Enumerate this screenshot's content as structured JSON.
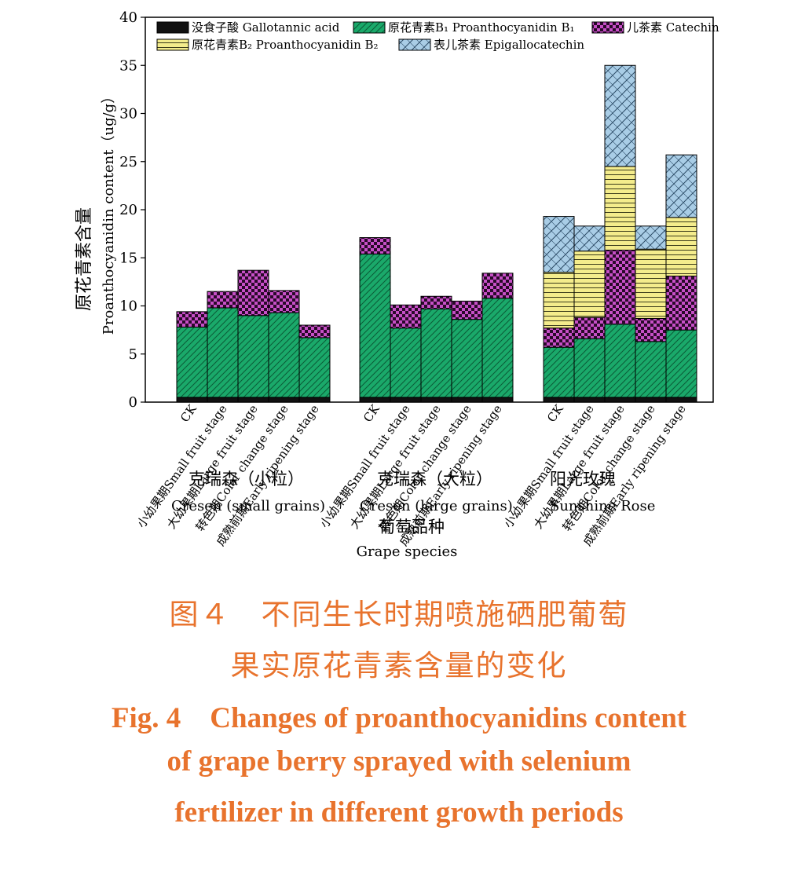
{
  "chart_data": {
    "type": "bar",
    "stacked": true,
    "ylabel_zh": "原花青素含量",
    "ylabel_en": "Proanthocyanidin content（ug/g）",
    "xlabel_zh": "葡萄品种",
    "xlabel_en": "Grape species",
    "ylim": [
      0,
      40
    ],
    "yticks": [
      0,
      5,
      10,
      15,
      20,
      25,
      30,
      35,
      40
    ],
    "legend_position": "top-left",
    "groups": [
      {
        "name_zh": "克瑞森（小粒）",
        "name_en": "Cresen (small grains)"
      },
      {
        "name_zh": "克瑞森（大粒）",
        "name_en": "Cresen (large grains)"
      },
      {
        "name_zh": "阳光玫瑰",
        "name_en": "Sunshine Rose"
      }
    ],
    "categories": [
      "CK",
      "小幼果期Small fruit stage",
      "大幼果期Large fruit stage",
      "转色期Color change stage",
      "成熟前期Early ripening stage"
    ],
    "series": [
      {
        "name": "没食子酸 Gallotannic acid",
        "color": "#111111",
        "pattern": "solid",
        "values": [
          [
            0.5,
            0.5,
            0.5,
            0.5,
            0.5
          ],
          [
            0.5,
            0.5,
            0.5,
            0.5,
            0.5
          ],
          [
            0.5,
            0.5,
            0.5,
            0.5,
            0.5
          ]
        ]
      },
      {
        "name": "原花青素B₁ Proanthocyanidin B₁",
        "color": "#1aa96a",
        "pattern": "diag",
        "values": [
          [
            7.3,
            9.3,
            8.5,
            8.8,
            6.2
          ],
          [
            14.9,
            7.2,
            9.2,
            8.1,
            10.3
          ],
          [
            5.2,
            6.1,
            7.6,
            5.8,
            7.0
          ]
        ]
      },
      {
        "name": "儿茶素 Catechin",
        "color": "#c64fc6",
        "pattern": "check",
        "values": [
          [
            1.6,
            1.7,
            4.7,
            2.3,
            1.3
          ],
          [
            1.7,
            2.4,
            1.3,
            1.9,
            2.6
          ],
          [
            2.0,
            2.2,
            7.7,
            2.4,
            5.6
          ]
        ]
      },
      {
        "name": "原花青素B₂ Proanthocyanidin B₂",
        "color": "#f4ec8c",
        "pattern": "hlines",
        "values": [
          [
            0,
            0,
            0,
            0,
            0
          ],
          [
            0,
            0,
            0,
            0,
            0
          ],
          [
            5.8,
            6.9,
            8.7,
            7.2,
            6.1
          ]
        ]
      },
      {
        "name": "表儿茶素 Epigallocatechin",
        "color": "#a9cde6",
        "pattern": "cross",
        "values": [
          [
            0,
            0,
            0,
            0,
            0
          ],
          [
            0,
            0,
            0,
            0,
            0
          ],
          [
            5.8,
            2.6,
            10.5,
            2.4,
            6.5
          ]
        ]
      }
    ]
  },
  "caption": {
    "zh_line1": "图４　不同生长时期喷施硒肥葡萄",
    "zh_line2": "果实原花青素含量的变化",
    "en_line1": "Fig. 4　Changes of proanthocyanidins content",
    "en_line2": "of grape berry sprayed with selenium",
    "en_line3": "fertilizer in different growth periods"
  }
}
